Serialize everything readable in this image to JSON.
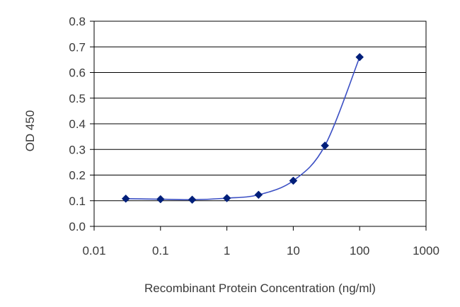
{
  "chart_data": {
    "type": "scatter",
    "title": "",
    "xlabel": "Recombinant Protein Concentration (ng/ml)",
    "ylabel": "OD 450",
    "x_scale": "log",
    "xlim": [
      0.01,
      1000
    ],
    "ylim": [
      0,
      0.8
    ],
    "x_tick_labels": [
      "0.01",
      "0.1",
      "1",
      "10",
      "100",
      "1000"
    ],
    "y_tick_labels": [
      "0.0",
      "0.1",
      "0.2",
      "0.3",
      "0.4",
      "0.5",
      "0.6",
      "0.7",
      "0.8"
    ],
    "grid": "horizontal",
    "legend": "none",
    "series": [
      {
        "marker": "diamond",
        "line": "smooth fitted curve",
        "color": "#001f7a",
        "line_color": "#3b4fc4",
        "x": [
          0.03,
          0.1,
          0.3,
          1,
          3,
          10,
          30,
          100
        ],
        "y": [
          0.108,
          0.106,
          0.104,
          0.11,
          0.123,
          0.178,
          0.315,
          0.66
        ]
      }
    ]
  },
  "colors": {
    "background": "#ffffff",
    "frame": "#000000",
    "grid": "#000000",
    "text": "#3a3a3a"
  }
}
